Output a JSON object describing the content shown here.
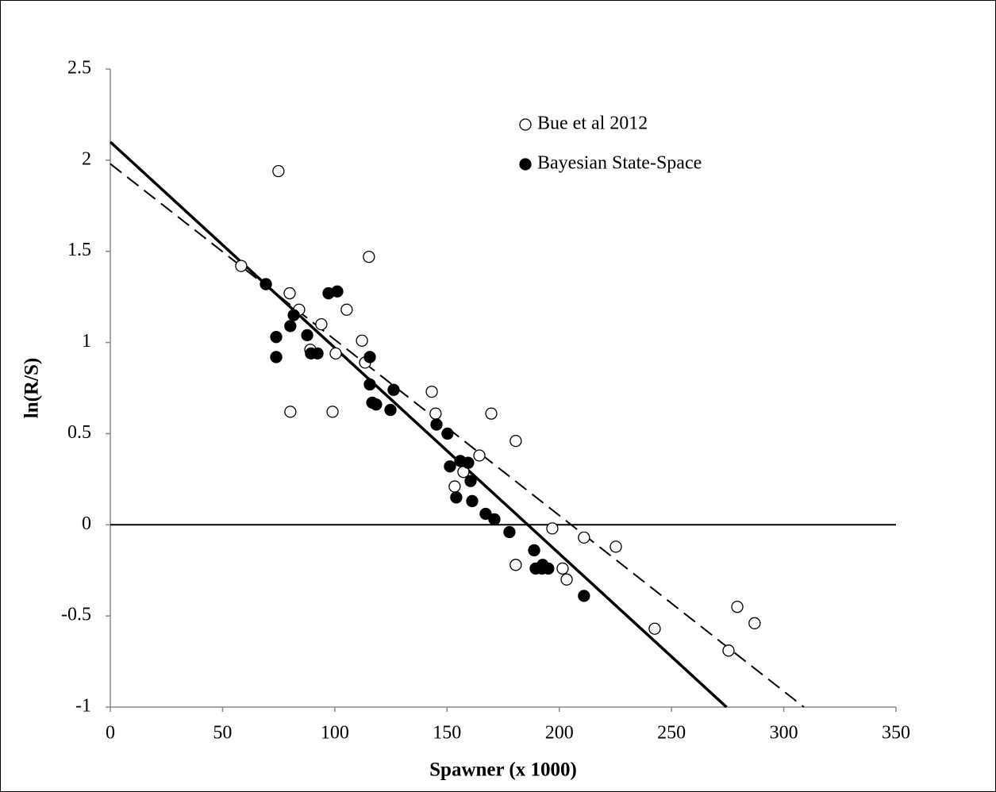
{
  "chart_data": {
    "type": "scatter",
    "x_label": "Spawner (x 1000)",
    "y_label": "ln(R/S)",
    "xlim": [
      0,
      350
    ],
    "xticks": [
      0,
      50,
      100,
      150,
      200,
      250,
      300,
      350
    ],
    "ylim": [
      -1,
      2.5
    ],
    "yticks": [
      -1,
      -0.5,
      0,
      0.5,
      1,
      1.5,
      2,
      2.5
    ],
    "hline": 0,
    "legend": "top-center",
    "series": [
      {
        "name": "Bue et al 2012",
        "color": "#ffffff",
        "x": [
          74.9,
          58.3,
          115.2,
          79.9,
          84.1,
          105.3,
          94.0,
          112.1,
          89.1,
          100.4,
          113.5,
          80.2,
          99.0,
          143.2,
          144.9,
          169.7,
          180.6,
          164.4,
          157.3,
          153.4,
          196.9,
          211.0,
          225.2,
          180.6,
          201.5,
          203.3,
          279.3,
          287.0,
          242.5,
          275.4
        ],
        "values": [
          1.94,
          1.42,
          1.47,
          1.27,
          1.18,
          1.18,
          1.1,
          1.01,
          0.96,
          0.94,
          0.89,
          0.62,
          0.62,
          0.73,
          0.61,
          0.61,
          0.46,
          0.38,
          0.29,
          0.21,
          -0.02,
          -0.07,
          -0.12,
          -0.22,
          -0.24,
          -0.3,
          -0.45,
          -0.54,
          -0.57,
          -0.69
        ]
      },
      {
        "name": "Bayesian State-Space",
        "color": "#000000",
        "x": [
          69.3,
          97.2,
          101.1,
          81.7,
          80.2,
          73.9,
          87.7,
          89.4,
          92.3,
          73.9,
          115.6,
          115.6,
          126.2,
          116.7,
          118.4,
          124.8,
          145.3,
          150.2,
          151.3,
          155.9,
          159.4,
          160.5,
          154.1,
          161.2,
          167.2,
          171.1,
          177.8,
          188.8,
          189.5,
          192.6,
          192.3,
          195.1,
          211.0
        ],
        "values": [
          1.32,
          1.27,
          1.28,
          1.15,
          1.09,
          1.03,
          1.04,
          0.94,
          0.94,
          0.92,
          0.92,
          0.77,
          0.74,
          0.67,
          0.66,
          0.63,
          0.55,
          0.5,
          0.32,
          0.35,
          0.34,
          0.24,
          0.15,
          0.13,
          0.06,
          0.03,
          -0.04,
          -0.14,
          -0.24,
          -0.22,
          -0.24,
          -0.24,
          -0.39
        ]
      }
    ],
    "lines": [
      {
        "style": "solid",
        "x": [
          0,
          274.5
        ],
        "values": [
          2.1,
          -1
        ]
      },
      {
        "style": "dashed",
        "x": [
          0,
          309
        ],
        "values": [
          1.98,
          -1
        ]
      }
    ]
  }
}
